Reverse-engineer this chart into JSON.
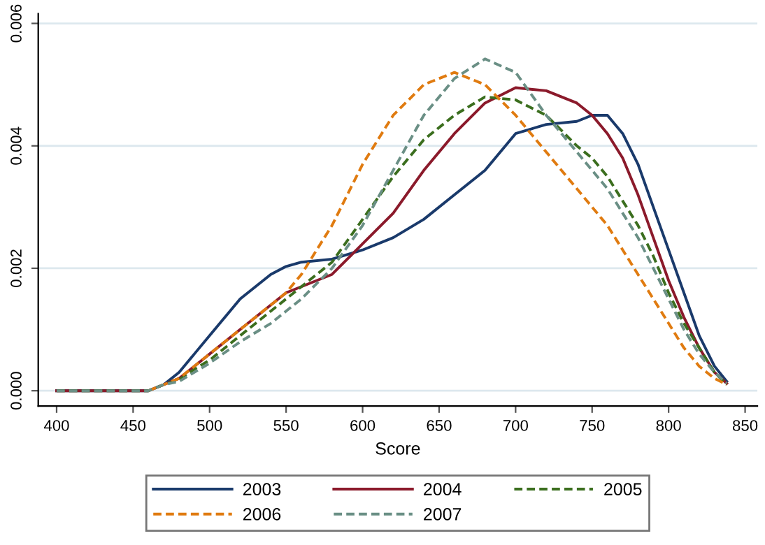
{
  "chart_data": {
    "type": "line",
    "xlabel": "Score",
    "x": [
      400,
      450,
      460,
      470,
      480,
      490,
      500,
      520,
      540,
      550,
      560,
      580,
      600,
      620,
      640,
      660,
      680,
      700,
      720,
      740,
      750,
      760,
      770,
      780,
      790,
      800,
      810,
      820,
      830,
      838
    ],
    "series": [
      {
        "name": "2003",
        "color": "#1a3a6b",
        "line_style": "solid",
        "values": [
          0,
          0,
          0,
          0.0001,
          0.0003,
          0.0006,
          0.0009,
          0.0015,
          0.0019,
          0.00203,
          0.0021,
          0.00215,
          0.0023,
          0.0025,
          0.0028,
          0.0032,
          0.0036,
          0.0042,
          0.00435,
          0.0044,
          0.0045,
          0.0045,
          0.0042,
          0.0037,
          0.003,
          0.0023,
          0.0016,
          0.0009,
          0.0004,
          0.00015
        ]
      },
      {
        "name": "2004",
        "color": "#8b1a2b",
        "line_style": "solid",
        "values": [
          0,
          0,
          0,
          0.0001,
          0.0002,
          0.0004,
          0.0006,
          0.001,
          0.0014,
          0.0016,
          0.0017,
          0.0019,
          0.0024,
          0.0029,
          0.0036,
          0.0042,
          0.0047,
          0.00495,
          0.0049,
          0.0047,
          0.0045,
          0.0042,
          0.0038,
          0.0032,
          0.0025,
          0.0018,
          0.0012,
          0.0007,
          0.0003,
          0.00012
        ]
      },
      {
        "name": "2005",
        "color": "#3b6e1e",
        "line_style": "dashed",
        "values": [
          0,
          0,
          0,
          0.0001,
          0.00018,
          0.00035,
          0.0005,
          0.0009,
          0.0013,
          0.0015,
          0.0017,
          0.0021,
          0.0028,
          0.0035,
          0.0041,
          0.0045,
          0.0048,
          0.00475,
          0.0045,
          0.004,
          0.0038,
          0.0035,
          0.0031,
          0.0027,
          0.0022,
          0.0016,
          0.0011,
          0.0007,
          0.0003,
          0.0001
        ]
      },
      {
        "name": "2006",
        "color": "#e07b10",
        "line_style": "dashed",
        "values": [
          null,
          null,
          0,
          0.0001,
          0.0002,
          0.0004,
          0.0006,
          0.001,
          0.0014,
          0.0016,
          0.0019,
          0.0027,
          0.0037,
          0.0045,
          0.005,
          0.0052,
          0.005,
          0.0045,
          0.0039,
          0.0033,
          0.003,
          0.0027,
          0.0023,
          0.0019,
          0.0015,
          0.0011,
          0.0007,
          0.0004,
          0.0002,
          0.0001
        ]
      },
      {
        "name": "2007",
        "color": "#6a8f85",
        "line_style": "dashed",
        "values": [
          0,
          0,
          0,
          0.0001,
          0.00015,
          0.0003,
          0.00045,
          0.0008,
          0.0011,
          0.0013,
          0.0015,
          0.002,
          0.0027,
          0.0036,
          0.0045,
          0.0051,
          0.00542,
          0.0052,
          0.0045,
          0.0039,
          0.0036,
          0.0033,
          0.0029,
          0.0025,
          0.002,
          0.0015,
          0.001,
          0.0006,
          0.0003,
          0.00012
        ]
      }
    ],
    "xlim": [
      388,
      858
    ],
    "xticks": [
      400,
      450,
      500,
      550,
      600,
      650,
      700,
      750,
      800,
      850
    ],
    "ylim": [
      -0.00025,
      0.00616
    ],
    "yticks": [
      {
        "value": 0,
        "label": "0.000"
      },
      {
        "value": 0.002,
        "label": "0.002"
      },
      {
        "value": 0.004,
        "label": "0.004"
      },
      {
        "value": 0.006,
        "label": "0.006"
      }
    ],
    "grid": "y",
    "legend": "bottom"
  }
}
